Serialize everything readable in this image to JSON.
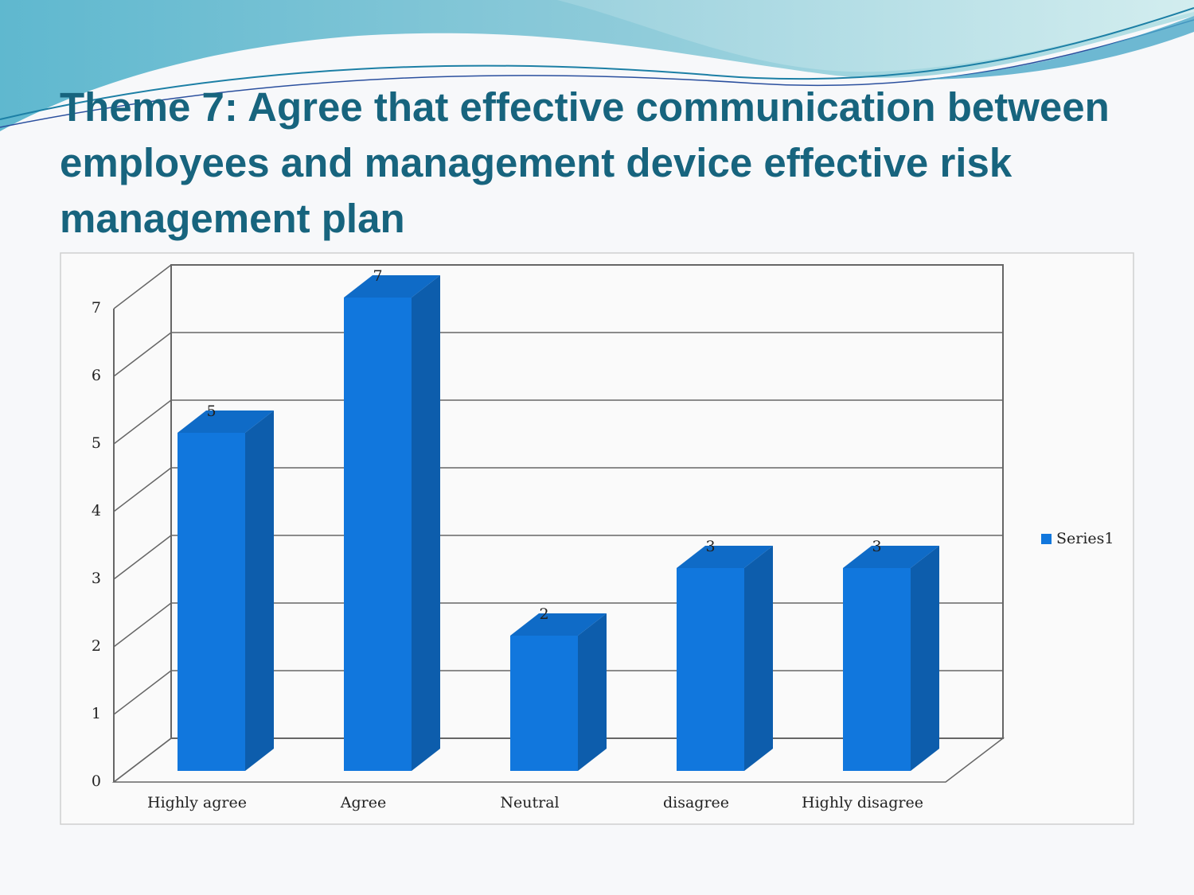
{
  "chart_data": {
    "type": "bar",
    "title": "Theme 7: Agree that effective communication between employees and management device effective risk management plan",
    "categories": [
      "Highly agree",
      "Agree",
      "Neutral",
      "disagree",
      "Highly disagree"
    ],
    "series": [
      {
        "name": "Series1",
        "color": "#1177dd",
        "values": [
          5,
          7,
          2,
          3,
          3
        ]
      }
    ],
    "ylim": [
      0,
      7
    ],
    "yticks": [
      0,
      1,
      2,
      3,
      4,
      5,
      6,
      7
    ],
    "grid": true,
    "legend": "right"
  }
}
